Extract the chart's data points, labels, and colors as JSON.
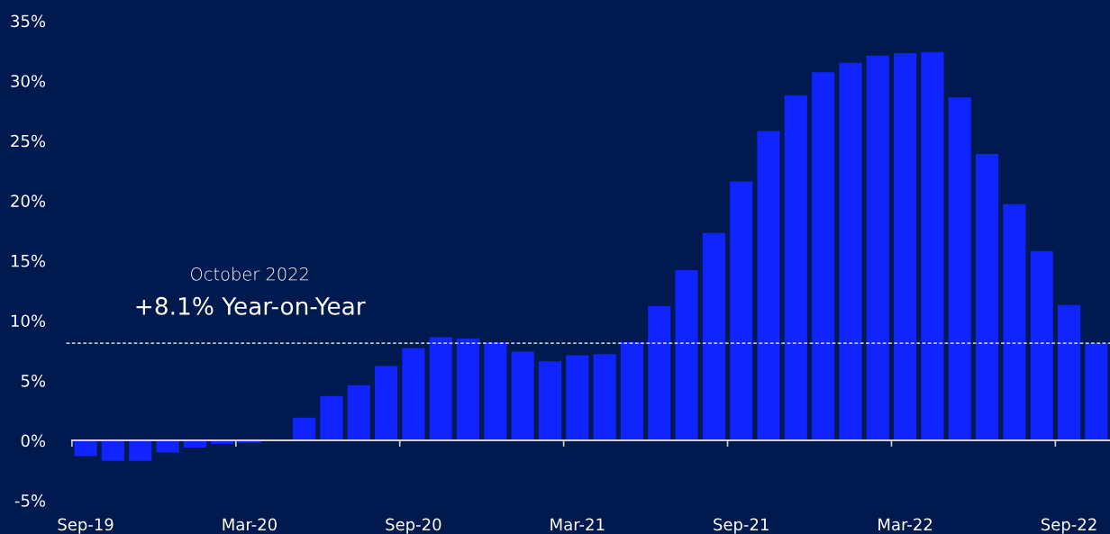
{
  "chart_data": {
    "type": "bar",
    "categories": [
      "Sep-19",
      null,
      null,
      null,
      null,
      null,
      "Mar-20",
      null,
      null,
      null,
      null,
      null,
      "Sep-20",
      null,
      null,
      null,
      null,
      null,
      "Mar-21",
      null,
      null,
      null,
      null,
      null,
      "Sep-21",
      null,
      null,
      null,
      null,
      null,
      "Mar-22",
      null,
      null,
      null,
      null,
      null,
      "Sep-22",
      null
    ],
    "values": [
      -1.3,
      -1.7,
      -1.7,
      -1.0,
      -0.6,
      -0.3,
      -0.2,
      null,
      1.9,
      3.7,
      4.6,
      6.2,
      7.7,
      8.6,
      8.5,
      8.2,
      7.4,
      6.6,
      7.1,
      7.2,
      8.2,
      11.2,
      14.2,
      17.3,
      21.6,
      25.8,
      28.8,
      30.7,
      31.5,
      32.1,
      32.3,
      32.4,
      28.6,
      23.9,
      19.7,
      15.8,
      11.3,
      8.1
    ],
    "color": "#0f24ff",
    "ylim": [
      -5,
      35
    ],
    "yticks": [
      {
        "value": -5,
        "label": "-5%"
      },
      {
        "value": 0,
        "label": "0%"
      },
      {
        "value": 5,
        "label": "5%"
      },
      {
        "value": 10,
        "label": "10%"
      },
      {
        "value": 15,
        "label": "15%"
      },
      {
        "value": 20,
        "label": "20%"
      },
      {
        "value": 25,
        "label": "25%"
      },
      {
        "value": 30,
        "label": "30%"
      },
      {
        "value": 35,
        "label": "35%"
      }
    ],
    "ref_lines": [
      {
        "axis": "y",
        "value": 8.1,
        "color": "#ffffff",
        "line_style": "dashed"
      }
    ],
    "annotations": [
      "October 2022",
      "+8.1% Year-on-Year"
    ],
    "legend": false
  }
}
